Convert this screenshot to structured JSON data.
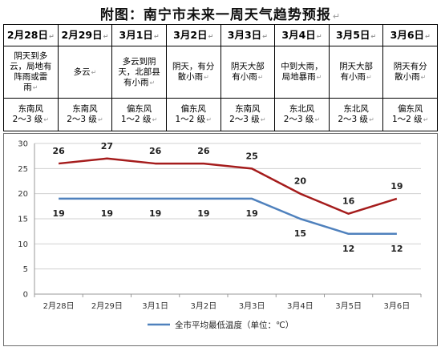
{
  "title": "附图：南宁市未来一周天气趋势预报",
  "title_mark": "↵",
  "cell_mark": "↵",
  "dates": [
    "2月28日",
    "2月29日",
    "3月1日",
    "3月2日",
    "3月3日",
    "3月4日",
    "3月5日",
    "3月6日"
  ],
  "weather": [
    [
      "阴天到多",
      "云，局地有",
      "阵雨或雷",
      "雨"
    ],
    [
      "多云"
    ],
    [
      "多云到阴",
      "天，北部县",
      "有小雨"
    ],
    [
      "阴天，有分",
      "散小雨"
    ],
    [
      "阴天大部",
      "有小雨"
    ],
    [
      "中到大雨，",
      "局地暴雨"
    ],
    [
      "阴天大部",
      "有小雨"
    ],
    [
      "阴天有分",
      "散小雨"
    ]
  ],
  "wind": [
    [
      "东南风",
      "2～3 级"
    ],
    [
      "东南风",
      "2～3 级"
    ],
    [
      "偏东风",
      "1～2 级"
    ],
    [
      "偏东风",
      "1～2 级"
    ],
    [
      "东南风",
      "2～3 级"
    ],
    [
      "东北风",
      "2～3 级"
    ],
    [
      "东北风",
      "2～3 级"
    ],
    [
      "偏东风",
      "1～2 级"
    ]
  ],
  "colors": {
    "high": "#a51c1c",
    "low": "#4f81bd",
    "grid": "#d0d0d0",
    "axis": "#9a9a9a"
  },
  "chart_data": {
    "type": "line",
    "categories": [
      "2月28日",
      "2月29日",
      "3月1日",
      "3月2日",
      "3月3日",
      "3月4日",
      "3月5日",
      "3月6日"
    ],
    "series": [
      {
        "name": "",
        "values": [
          26,
          27,
          26,
          26,
          25,
          20,
          16,
          19
        ]
      },
      {
        "name": "全市平均最低温度（单位：℃）",
        "values": [
          19,
          19,
          19,
          19,
          19,
          15,
          12,
          12
        ]
      }
    ],
    "ylim": [
      0,
      30
    ],
    "yticks": [
      "0",
      "5",
      "10",
      "15",
      "20",
      "25",
      "30"
    ],
    "grid": true,
    "legend_position": "bottom",
    "legend": "全市平均最低温度（单位：℃）"
  }
}
